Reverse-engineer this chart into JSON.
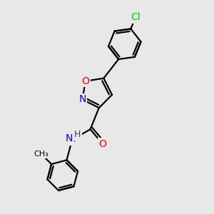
{
  "bg_color": "#e8e8e8",
  "bond_color": "#000000",
  "bond_width": 1.6,
  "atom_colors": {
    "N": "#0000ff",
    "O": "#ff0000",
    "Cl": "#00cc00",
    "C": "#000000",
    "H": "#444444"
  },
  "font_size": 10,
  "small_font_size": 8
}
